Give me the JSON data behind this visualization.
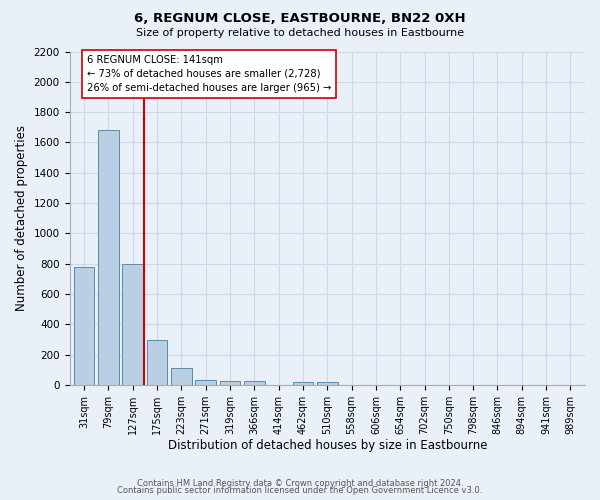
{
  "title": "6, REGNUM CLOSE, EASTBOURNE, BN22 0XH",
  "subtitle": "Size of property relative to detached houses in Eastbourne",
  "xlabel": "Distribution of detached houses by size in Eastbourne",
  "ylabel": "Number of detached properties",
  "bar_labels": [
    "31sqm",
    "79sqm",
    "127sqm",
    "175sqm",
    "223sqm",
    "271sqm",
    "319sqm",
    "366sqm",
    "414sqm",
    "462sqm",
    "510sqm",
    "558sqm",
    "606sqm",
    "654sqm",
    "702sqm",
    "750sqm",
    "798sqm",
    "846sqm",
    "894sqm",
    "941sqm",
    "989sqm"
  ],
  "bar_values": [
    780,
    1685,
    800,
    295,
    110,
    35,
    25,
    25,
    0,
    20,
    20,
    0,
    0,
    0,
    0,
    0,
    0,
    0,
    0,
    0,
    0
  ],
  "bar_color": "#b8cfe4",
  "bar_edgecolor": "#5a8ab0",
  "property_line_x": 2.45,
  "property_line_color": "#cc0000",
  "annotation_text": "6 REGNUM CLOSE: 141sqm\n← 73% of detached houses are smaller (2,728)\n26% of semi-detached houses are larger (965) →",
  "annotation_box_color": "#ffffff",
  "annotation_box_edgecolor": "#cc0000",
  "ylim": [
    0,
    2200
  ],
  "yticks": [
    0,
    200,
    400,
    600,
    800,
    1000,
    1200,
    1400,
    1600,
    1800,
    2000,
    2200
  ],
  "grid_color": "#d0d8e8",
  "background_color": "#eaf0f8",
  "footer_line1": "Contains HM Land Registry data © Crown copyright and database right 2024.",
  "footer_line2": "Contains public sector information licensed under the Open Government Licence v3.0."
}
